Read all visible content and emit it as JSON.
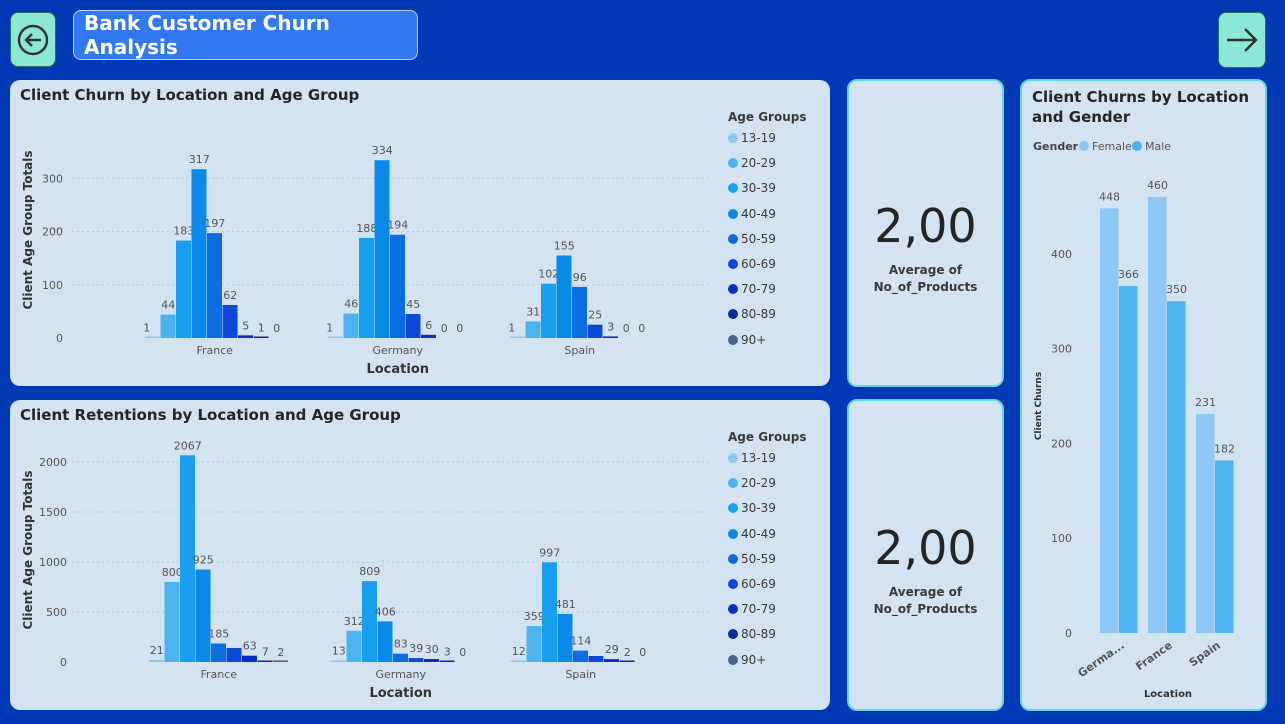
{
  "header": {
    "title": "Bank Customer Churn Analysis",
    "back_icon": "back-arrow-circle-icon",
    "next_icon": "forward-arrow-icon"
  },
  "colors": {
    "background": "#0039b4",
    "card": "#d4e3f2",
    "age_groups": [
      "#8ec9f6",
      "#4ab3f0",
      "#179ff0",
      "#0a8ae8",
      "#0b6de0",
      "#0b48d8",
      "#0a2fc0",
      "#0c2a99",
      "#4b6284"
    ],
    "gender": [
      "#8ec9f6",
      "#4ab3f0"
    ]
  },
  "kpi1": {
    "value": "2,00",
    "label_line1": "Average of",
    "label_line2": "No_of_Products"
  },
  "kpi2": {
    "value": "2,00",
    "label_line1": "Average of",
    "label_line2": "No_of_Products"
  },
  "chart_data": [
    {
      "id": "churn",
      "type": "bar",
      "title": "Client Churn by Location and Age Group",
      "xlabel": "Location",
      "ylabel": "Client Age Group Totals",
      "ylim": [
        0,
        340
      ],
      "yticks": [
        0,
        100,
        200,
        300
      ],
      "grid": true,
      "categories": [
        "France",
        "Germany",
        "Spain"
      ],
      "legend_title": "Age Groups",
      "legend_position": "right",
      "series": [
        {
          "name": "13-19",
          "values": [
            1,
            1,
            1
          ]
        },
        {
          "name": "20-29",
          "values": [
            44,
            46,
            31
          ]
        },
        {
          "name": "30-39",
          "values": [
            183,
            188,
            102
          ]
        },
        {
          "name": "40-49",
          "values": [
            317,
            334,
            155
          ]
        },
        {
          "name": "50-59",
          "values": [
            197,
            194,
            96
          ]
        },
        {
          "name": "60-69",
          "values": [
            62,
            45,
            25
          ]
        },
        {
          "name": "70-79",
          "values": [
            5,
            6,
            3
          ]
        },
        {
          "name": "80-89",
          "values": [
            1,
            0,
            0
          ]
        },
        {
          "name": "90+",
          "values": [
            0,
            0,
            0
          ]
        }
      ]
    },
    {
      "id": "retention",
      "type": "bar",
      "title": "Client Retentions by Location and Age Group",
      "xlabel": "Location",
      "ylabel": "Client Age Group Totals",
      "ylim": [
        0,
        2100
      ],
      "yticks": [
        0,
        500,
        1000,
        1500,
        2000
      ],
      "grid": true,
      "categories": [
        "France",
        "Germany",
        "Spain"
      ],
      "legend_title": "Age Groups",
      "legend_position": "right",
      "series": [
        {
          "name": "13-19",
          "values": [
            21,
            13,
            12
          ]
        },
        {
          "name": "20-29",
          "values": [
            800,
            312,
            359
          ]
        },
        {
          "name": "30-39",
          "values": [
            2067,
            809,
            997
          ]
        },
        {
          "name": "40-49",
          "values": [
            925,
            406,
            481
          ]
        },
        {
          "name": "50-59",
          "values": [
            185,
            83,
            114
          ]
        },
        {
          "name": "60-69",
          "values": [
            140,
            39,
            60
          ]
        },
        {
          "name": "70-79",
          "values": [
            63,
            30,
            29
          ]
        },
        {
          "name": "80-89",
          "values": [
            7,
            3,
            2
          ]
        },
        {
          "name": "90+",
          "values": [
            2,
            0,
            0
          ]
        }
      ],
      "hidden_labels": [
        [
          5
        ],
        [],
        [
          5
        ]
      ]
    },
    {
      "id": "gender",
      "type": "bar",
      "title": "Client Churns by Location and Gender",
      "xlabel": "Location",
      "ylabel": "Client Churns",
      "ylim": [
        0,
        480
      ],
      "yticks": [
        0,
        100,
        200,
        300,
        400
      ],
      "grid": false,
      "categories": [
        "Germa...",
        "France",
        "Spain"
      ],
      "legend_title": "Gender",
      "legend_position": "top",
      "series": [
        {
          "name": "Female",
          "values": [
            448,
            460,
            231
          ]
        },
        {
          "name": "Male",
          "values": [
            366,
            350,
            182
          ]
        }
      ]
    }
  ]
}
